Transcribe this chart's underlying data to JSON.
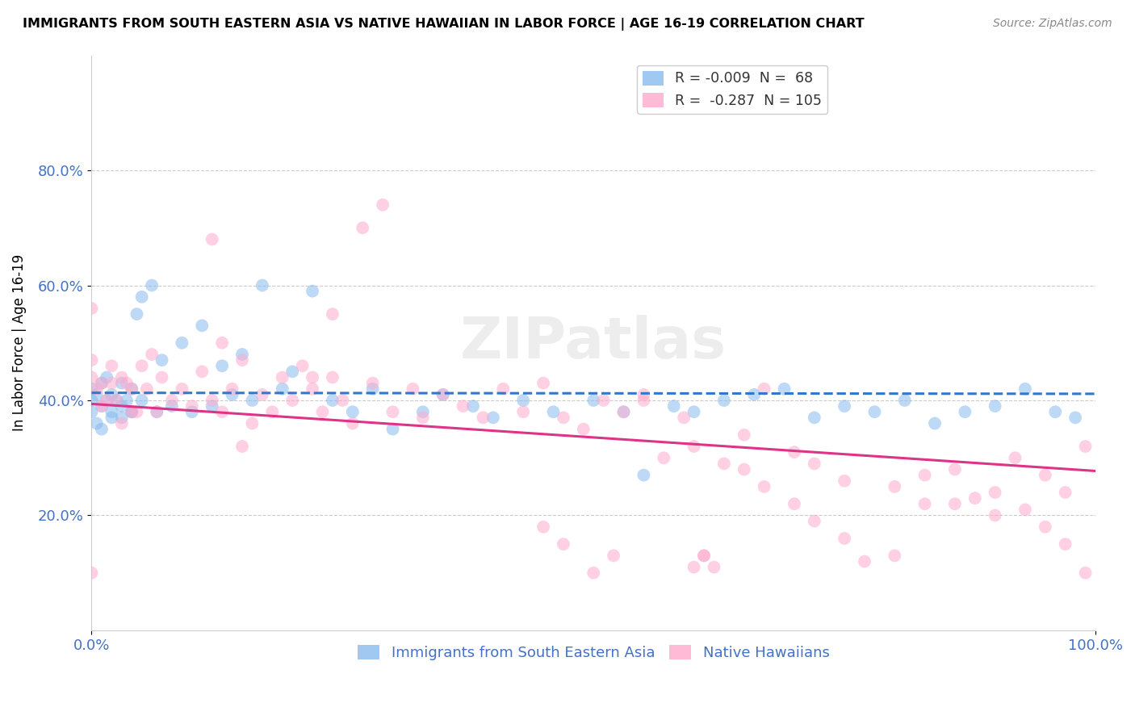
{
  "title": "IMMIGRANTS FROM SOUTH EASTERN ASIA VS NATIVE HAWAIIAN IN LABOR FORCE | AGE 16-19 CORRELATION CHART",
  "source": "Source: ZipAtlas.com",
  "ylabel": "In Labor Force | Age 16-19",
  "legend1_R": "-0.009",
  "legend1_N": "68",
  "legend2_R": "-0.287",
  "legend2_N": "105",
  "blue_color": "#88bbee",
  "pink_color": "#ffaacc",
  "blue_line_color": "#3377cc",
  "pink_line_color": "#dd3388",
  "watermark": "ZIPatlas",
  "blue_scatter_x": [
    0.0,
    0.0,
    0.0,
    0.005,
    0.01,
    0.01,
    0.015,
    0.015,
    0.02,
    0.02,
    0.025,
    0.03,
    0.03,
    0.035,
    0.04,
    0.04,
    0.045,
    0.05,
    0.05,
    0.06,
    0.065,
    0.07,
    0.08,
    0.09,
    0.1,
    0.11,
    0.12,
    0.13,
    0.14,
    0.15,
    0.16,
    0.17,
    0.19,
    0.2,
    0.22,
    0.24,
    0.26,
    0.28,
    0.3,
    0.33,
    0.35,
    0.38,
    0.4,
    0.43,
    0.46,
    0.5,
    0.53,
    0.55,
    0.58,
    0.6,
    0.63,
    0.66,
    0.69,
    0.72,
    0.75,
    0.78,
    0.81,
    0.84,
    0.87,
    0.9,
    0.93,
    0.96,
    0.98,
    0.005,
    0.01,
    0.02,
    0.03,
    0.04
  ],
  "blue_scatter_y": [
    0.38,
    0.4,
    0.42,
    0.41,
    0.39,
    0.43,
    0.4,
    0.44,
    0.38,
    0.41,
    0.4,
    0.37,
    0.43,
    0.4,
    0.38,
    0.42,
    0.55,
    0.58,
    0.4,
    0.6,
    0.38,
    0.47,
    0.39,
    0.5,
    0.38,
    0.53,
    0.39,
    0.46,
    0.41,
    0.48,
    0.4,
    0.6,
    0.42,
    0.45,
    0.59,
    0.4,
    0.38,
    0.42,
    0.35,
    0.38,
    0.41,
    0.39,
    0.37,
    0.4,
    0.38,
    0.4,
    0.38,
    0.27,
    0.39,
    0.38,
    0.4,
    0.41,
    0.42,
    0.37,
    0.39,
    0.38,
    0.4,
    0.36,
    0.38,
    0.39,
    0.42,
    0.38,
    0.37,
    0.36,
    0.35,
    0.37,
    0.39,
    0.38
  ],
  "pink_scatter_x": [
    0.0,
    0.0,
    0.0,
    0.0,
    0.005,
    0.01,
    0.01,
    0.015,
    0.02,
    0.02,
    0.025,
    0.03,
    0.03,
    0.035,
    0.04,
    0.04,
    0.045,
    0.05,
    0.055,
    0.06,
    0.065,
    0.07,
    0.08,
    0.09,
    0.1,
    0.11,
    0.12,
    0.12,
    0.13,
    0.14,
    0.15,
    0.16,
    0.17,
    0.18,
    0.19,
    0.2,
    0.21,
    0.22,
    0.23,
    0.24,
    0.25,
    0.26,
    0.27,
    0.28,
    0.29,
    0.3,
    0.32,
    0.33,
    0.35,
    0.37,
    0.39,
    0.41,
    0.43,
    0.45,
    0.47,
    0.49,
    0.51,
    0.53,
    0.55,
    0.57,
    0.59,
    0.6,
    0.61,
    0.63,
    0.65,
    0.67,
    0.7,
    0.72,
    0.75,
    0.77,
    0.8,
    0.83,
    0.86,
    0.88,
    0.9,
    0.92,
    0.95,
    0.97,
    0.99,
    0.13,
    0.15,
    0.22,
    0.24,
    0.6,
    0.61,
    0.62,
    0.65,
    0.67,
    0.7,
    0.72,
    0.75,
    0.8,
    0.83,
    0.86,
    0.9,
    0.93,
    0.95,
    0.97,
    0.99,
    0.45,
    0.47,
    0.5,
    0.52,
    0.55
  ],
  "pink_scatter_y": [
    0.56,
    0.47,
    0.44,
    0.1,
    0.42,
    0.39,
    0.43,
    0.4,
    0.46,
    0.43,
    0.4,
    0.36,
    0.44,
    0.43,
    0.38,
    0.42,
    0.38,
    0.46,
    0.42,
    0.48,
    0.38,
    0.44,
    0.4,
    0.42,
    0.39,
    0.45,
    0.68,
    0.4,
    0.38,
    0.42,
    0.47,
    0.36,
    0.41,
    0.38,
    0.44,
    0.4,
    0.46,
    0.42,
    0.38,
    0.44,
    0.4,
    0.36,
    0.7,
    0.43,
    0.74,
    0.38,
    0.42,
    0.37,
    0.41,
    0.39,
    0.37,
    0.42,
    0.38,
    0.43,
    0.37,
    0.35,
    0.4,
    0.38,
    0.41,
    0.3,
    0.37,
    0.32,
    0.13,
    0.29,
    0.34,
    0.42,
    0.31,
    0.29,
    0.26,
    0.12,
    0.25,
    0.22,
    0.28,
    0.23,
    0.2,
    0.3,
    0.27,
    0.24,
    0.32,
    0.5,
    0.32,
    0.44,
    0.55,
    0.11,
    0.13,
    0.11,
    0.28,
    0.25,
    0.22,
    0.19,
    0.16,
    0.13,
    0.27,
    0.22,
    0.24,
    0.21,
    0.18,
    0.15,
    0.1,
    0.18,
    0.15,
    0.1,
    0.13,
    0.4
  ]
}
